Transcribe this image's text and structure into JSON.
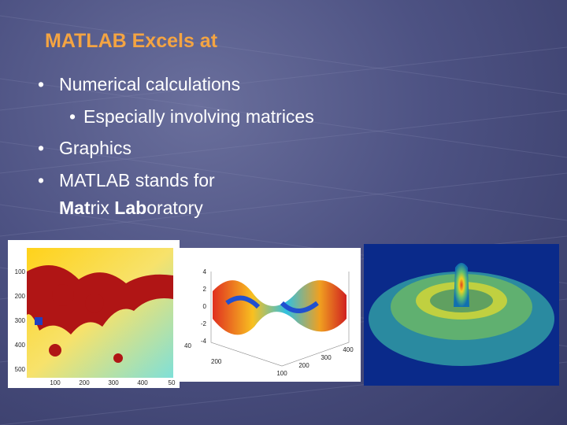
{
  "title": "MATLAB Excels at",
  "bullets": [
    {
      "text": "Numerical calculations",
      "sub": [
        "Especially involving matrices"
      ]
    },
    {
      "text": "Graphics"
    },
    {
      "text": "MATLAB stands for",
      "continuation": [
        {
          "text": "Mat",
          "bold": true
        },
        {
          "text": "rix ",
          "bold": false
        },
        {
          "text": "Lab",
          "bold": true
        },
        {
          "text": "oratory",
          "bold": false
        }
      ]
    }
  ],
  "images": [
    {
      "y_ticks": [
        "100",
        "200",
        "300",
        "400",
        "500"
      ],
      "x_ticks": [
        "100",
        "200",
        "300",
        "400",
        "50"
      ]
    },
    {
      "z_ticks": [
        "4",
        "2",
        "0",
        "-2",
        "-4"
      ],
      "left_ticks": [
        "40",
        "200"
      ],
      "right_ticks": [
        "100",
        "200",
        "300",
        "400"
      ]
    },
    {}
  ]
}
